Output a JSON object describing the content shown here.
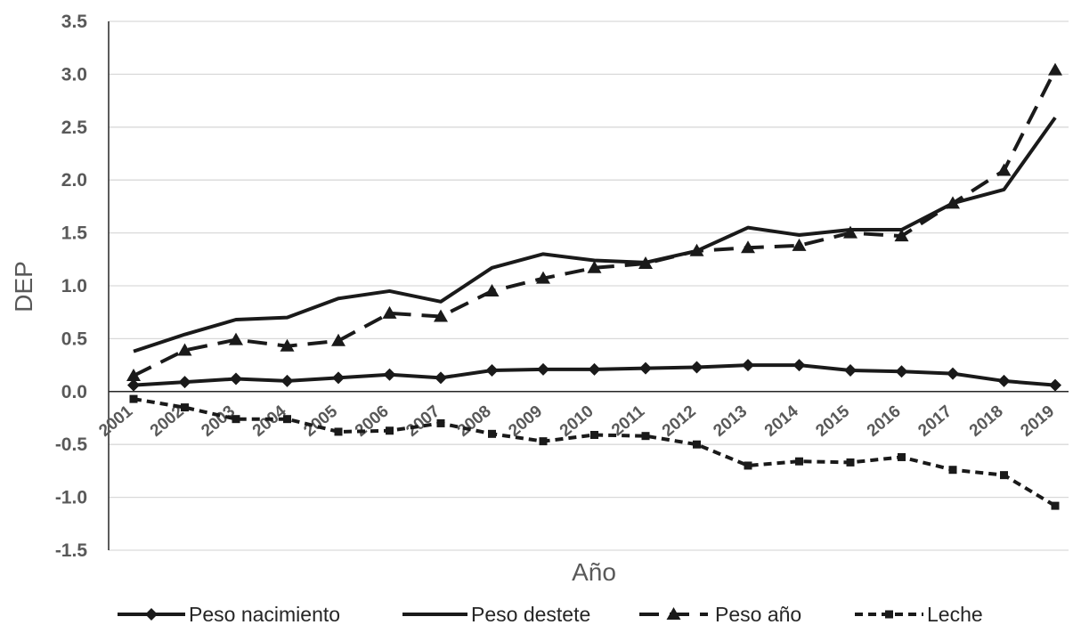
{
  "chart_data": {
    "type": "line",
    "xlabel": "Año",
    "ylabel": "DEP",
    "ylim": [
      -1.5,
      3.5
    ],
    "yticks": [
      "3.5",
      "3.0",
      "2.5",
      "2.0",
      "1.5",
      "1.0",
      "0.5",
      "0.0",
      "-0.5",
      "-1.0",
      "-1.5"
    ],
    "ytick_values": [
      3.5,
      3.0,
      2.5,
      2.0,
      1.5,
      1.0,
      0.5,
      0.0,
      -0.5,
      -1.0,
      -1.5
    ],
    "categories": [
      "2001",
      "2002",
      "2003",
      "2004",
      "2005",
      "2006",
      "2007",
      "2008",
      "2009",
      "2010",
      "2011",
      "2012",
      "2013",
      "2014",
      "2015",
      "2016",
      "2017",
      "2018",
      "2019"
    ],
    "grid": true,
    "legend_position": "bottom",
    "series": [
      {
        "name": "Peso nacimiento",
        "style": "solid",
        "marker": "diamond",
        "values": [
          0.06,
          0.09,
          0.12,
          0.1,
          0.13,
          0.16,
          0.13,
          0.2,
          0.21,
          0.21,
          0.22,
          0.23,
          0.25,
          0.25,
          0.2,
          0.19,
          0.17,
          0.1,
          0.06
        ]
      },
      {
        "name": "Peso destete",
        "style": "solid",
        "marker": "none",
        "values": [
          0.38,
          0.54,
          0.68,
          0.7,
          0.88,
          0.95,
          0.85,
          1.17,
          1.3,
          1.24,
          1.22,
          1.33,
          1.55,
          1.48,
          1.53,
          1.53,
          1.78,
          1.91,
          2.59
        ]
      },
      {
        "name": "Peso año",
        "style": "dashed",
        "marker": "triangle",
        "values": [
          0.15,
          0.39,
          0.49,
          0.43,
          0.48,
          0.74,
          0.71,
          0.95,
          1.07,
          1.17,
          1.21,
          1.33,
          1.36,
          1.38,
          1.5,
          1.47,
          1.78,
          2.09,
          3.04
        ]
      },
      {
        "name": "Leche",
        "style": "dotted",
        "marker": "square",
        "values": [
          -0.07,
          -0.15,
          -0.26,
          -0.26,
          -0.38,
          -0.37,
          -0.3,
          -0.4,
          -0.47,
          -0.41,
          -0.42,
          -0.5,
          -0.7,
          -0.66,
          -0.67,
          -0.62,
          -0.74,
          -0.79,
          -1.08
        ]
      }
    ]
  }
}
